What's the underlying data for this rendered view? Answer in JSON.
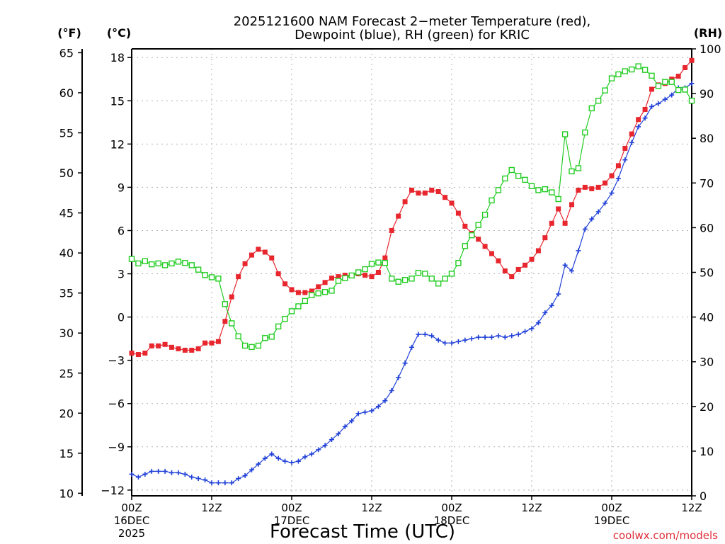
{
  "chart_data": {
    "type": "line",
    "title": [
      "2025121600 NAM Forecast 2−meter Temperature (red),",
      "Dewpoint (blue), RH (green) for KRIC"
    ],
    "xlabel": "Forecast Time (UTC)",
    "credit": "coolwx.com/models",
    "units": {
      "far": "(°F)",
      "cel": "(°C)",
      "rh": "(RH)"
    },
    "ylim_c": [
      -12.4,
      18.6
    ],
    "ylim_rh": [
      0,
      100
    ],
    "y_ticks_c": [
      -12,
      -9,
      -6,
      -3,
      0,
      3,
      6,
      9,
      12,
      15,
      18
    ],
    "y_ticks_f": [
      10,
      15,
      20,
      25,
      30,
      35,
      40,
      45,
      50,
      55,
      60,
      65
    ],
    "y_ticks_rh": [
      0,
      10,
      20,
      30,
      40,
      50,
      60,
      70,
      80,
      90,
      100
    ],
    "xlim_hours": [
      0,
      84
    ],
    "x_ticks": [
      {
        "hour": 0,
        "lines": [
          "00Z",
          "16DEC",
          "2025"
        ]
      },
      {
        "hour": 12,
        "lines": [
          "12Z"
        ]
      },
      {
        "hour": 24,
        "lines": [
          "00Z",
          "17DEC"
        ]
      },
      {
        "hour": 36,
        "lines": [
          "12Z"
        ]
      },
      {
        "hour": 48,
        "lines": [
          "00Z",
          "18DEC"
        ]
      },
      {
        "hour": 60,
        "lines": [
          "12Z"
        ]
      },
      {
        "hour": 72,
        "lines": [
          "00Z",
          "19DEC"
        ]
      },
      {
        "hour": 84,
        "lines": [
          "12Z"
        ]
      }
    ],
    "series": [
      {
        "name": "Temperature",
        "axis": "cel",
        "color": "#e8262e",
        "marker": "filled-square",
        "points": [
          [
            0,
            -2.5
          ],
          [
            1,
            -2.6
          ],
          [
            2,
            -2.5
          ],
          [
            3,
            -2.0
          ],
          [
            4,
            -2.0
          ],
          [
            5,
            -1.9
          ],
          [
            6,
            -2.1
          ],
          [
            7,
            -2.2
          ],
          [
            8,
            -2.3
          ],
          [
            9,
            -2.3
          ],
          [
            10,
            -2.2
          ],
          [
            11,
            -1.8
          ],
          [
            12,
            -1.8
          ],
          [
            13,
            -1.7
          ],
          [
            14,
            -0.3
          ],
          [
            15,
            1.4
          ],
          [
            16,
            2.8
          ],
          [
            17,
            3.7
          ],
          [
            18,
            4.3
          ],
          [
            19,
            4.7
          ],
          [
            20,
            4.5
          ],
          [
            21,
            4.1
          ],
          [
            22,
            3.0
          ],
          [
            23,
            2.3
          ],
          [
            24,
            1.9
          ],
          [
            25,
            1.7
          ],
          [
            26,
            1.7
          ],
          [
            27,
            1.8
          ],
          [
            28,
            2.1
          ],
          [
            29,
            2.4
          ],
          [
            30,
            2.7
          ],
          [
            31,
            2.8
          ],
          [
            32,
            2.9
          ],
          [
            33,
            2.9
          ],
          [
            34,
            3.0
          ],
          [
            35,
            2.9
          ],
          [
            36,
            2.8
          ],
          [
            37,
            3.1
          ],
          [
            38,
            4.1
          ],
          [
            39,
            6.0
          ],
          [
            40,
            7.0
          ],
          [
            41,
            8.0
          ],
          [
            42,
            8.8
          ],
          [
            43,
            8.6
          ],
          [
            44,
            8.6
          ],
          [
            45,
            8.8
          ],
          [
            46,
            8.7
          ],
          [
            47,
            8.3
          ],
          [
            48,
            7.9
          ],
          [
            49,
            7.2
          ],
          [
            50,
            6.3
          ],
          [
            51,
            5.8
          ],
          [
            52,
            5.4
          ],
          [
            53,
            4.9
          ],
          [
            54,
            4.4
          ],
          [
            55,
            3.9
          ],
          [
            56,
            3.2
          ],
          [
            57,
            2.8
          ],
          [
            58,
            3.3
          ],
          [
            59,
            3.6
          ],
          [
            60,
            4.0
          ],
          [
            61,
            4.6
          ],
          [
            62,
            5.5
          ],
          [
            63,
            6.5
          ],
          [
            64,
            7.5
          ],
          [
            65,
            6.5
          ],
          [
            66,
            7.8
          ],
          [
            67,
            8.8
          ],
          [
            68,
            9.0
          ],
          [
            69,
            8.9
          ],
          [
            70,
            9.0
          ],
          [
            71,
            9.3
          ],
          [
            72,
            9.8
          ],
          [
            73,
            10.5
          ],
          [
            74,
            11.7
          ],
          [
            75,
            12.7
          ],
          [
            76,
            13.7
          ],
          [
            77,
            14.4
          ],
          [
            78,
            15.8
          ],
          [
            79,
            16.1
          ],
          [
            80,
            16.2
          ],
          [
            81,
            16.5
          ],
          [
            82,
            16.7
          ],
          [
            83,
            17.3
          ],
          [
            84,
            17.8
          ]
        ]
      },
      {
        "name": "Dewpoint",
        "axis": "cel",
        "color": "#2040d8",
        "marker": "plus",
        "points": [
          [
            0,
            -10.9
          ],
          [
            1,
            -11.1
          ],
          [
            2,
            -10.9
          ],
          [
            3,
            -10.7
          ],
          [
            4,
            -10.7
          ],
          [
            5,
            -10.7
          ],
          [
            6,
            -10.8
          ],
          [
            7,
            -10.8
          ],
          [
            8,
            -10.9
          ],
          [
            9,
            -11.1
          ],
          [
            10,
            -11.2
          ],
          [
            11,
            -11.3
          ],
          [
            12,
            -11.5
          ],
          [
            13,
            -11.5
          ],
          [
            14,
            -11.5
          ],
          [
            15,
            -11.5
          ],
          [
            16,
            -11.2
          ],
          [
            17,
            -11.0
          ],
          [
            18,
            -10.6
          ],
          [
            19,
            -10.2
          ],
          [
            20,
            -9.8
          ],
          [
            21,
            -9.5
          ],
          [
            22,
            -9.8
          ],
          [
            23,
            -10.0
          ],
          [
            24,
            -10.1
          ],
          [
            25,
            -10.0
          ],
          [
            26,
            -9.7
          ],
          [
            27,
            -9.5
          ],
          [
            28,
            -9.2
          ],
          [
            29,
            -8.9
          ],
          [
            30,
            -8.5
          ],
          [
            31,
            -8.1
          ],
          [
            32,
            -7.6
          ],
          [
            33,
            -7.2
          ],
          [
            34,
            -6.7
          ],
          [
            35,
            -6.6
          ],
          [
            36,
            -6.5
          ],
          [
            37,
            -6.2
          ],
          [
            38,
            -5.8
          ],
          [
            39,
            -5.1
          ],
          [
            40,
            -4.2
          ],
          [
            41,
            -3.2
          ],
          [
            42,
            -2.1
          ],
          [
            43,
            -1.2
          ],
          [
            44,
            -1.2
          ],
          [
            45,
            -1.3
          ],
          [
            46,
            -1.6
          ],
          [
            47,
            -1.8
          ],
          [
            48,
            -1.8
          ],
          [
            49,
            -1.7
          ],
          [
            50,
            -1.6
          ],
          [
            51,
            -1.5
          ],
          [
            52,
            -1.4
          ],
          [
            53,
            -1.4
          ],
          [
            54,
            -1.4
          ],
          [
            55,
            -1.3
          ],
          [
            56,
            -1.4
          ],
          [
            57,
            -1.3
          ],
          [
            58,
            -1.2
          ],
          [
            59,
            -1.0
          ],
          [
            60,
            -0.8
          ],
          [
            61,
            -0.4
          ],
          [
            62,
            0.3
          ],
          [
            63,
            0.8
          ],
          [
            64,
            1.6
          ],
          [
            65,
            3.6
          ],
          [
            66,
            3.2
          ],
          [
            67,
            4.6
          ],
          [
            68,
            6.1
          ],
          [
            69,
            6.8
          ],
          [
            70,
            7.3
          ],
          [
            71,
            7.9
          ],
          [
            72,
            8.6
          ],
          [
            73,
            9.6
          ],
          [
            74,
            10.9
          ],
          [
            75,
            12.1
          ],
          [
            76,
            13.2
          ],
          [
            77,
            13.8
          ],
          [
            78,
            14.6
          ],
          [
            79,
            14.8
          ],
          [
            80,
            15.1
          ],
          [
            81,
            15.4
          ],
          [
            82,
            15.9
          ],
          [
            83,
            15.9
          ],
          [
            84,
            16.2
          ]
        ]
      },
      {
        "name": "RH",
        "axis": "rh",
        "color": "#22cc22",
        "marker": "open-square",
        "points": [
          [
            0,
            53
          ],
          [
            1,
            52
          ],
          [
            2,
            52.5
          ],
          [
            3,
            51.8
          ],
          [
            4,
            52
          ],
          [
            5,
            51.6
          ],
          [
            6,
            52
          ],
          [
            7,
            52.4
          ],
          [
            8,
            52.1
          ],
          [
            9,
            51.6
          ],
          [
            10,
            50.6
          ],
          [
            11,
            49.4
          ],
          [
            12,
            48.9
          ],
          [
            13,
            48.6
          ],
          [
            14,
            42.9
          ],
          [
            15,
            38.6
          ],
          [
            16,
            35.7
          ],
          [
            17,
            33.6
          ],
          [
            18,
            33.3
          ],
          [
            19,
            33.6
          ],
          [
            20,
            35.3
          ],
          [
            21,
            35.6
          ],
          [
            22,
            37.9
          ],
          [
            23,
            39.6
          ],
          [
            24,
            41.3
          ],
          [
            25,
            42.4
          ],
          [
            26,
            43.6
          ],
          [
            27,
            44.9
          ],
          [
            28,
            45.3
          ],
          [
            29,
            45.6
          ],
          [
            30,
            45.9
          ],
          [
            31,
            48.1
          ],
          [
            32,
            48.7
          ],
          [
            33,
            49.3
          ],
          [
            34,
            50
          ],
          [
            35,
            50.7
          ],
          [
            36,
            51.9
          ],
          [
            37,
            52.2
          ],
          [
            38,
            52.1
          ],
          [
            39,
            48.6
          ],
          [
            40,
            47.9
          ],
          [
            41,
            48.3
          ],
          [
            42,
            48.6
          ],
          [
            43,
            49.9
          ],
          [
            44,
            49.7
          ],
          [
            45,
            48.6
          ],
          [
            46,
            47.5
          ],
          [
            47,
            48.6
          ],
          [
            48,
            49.7
          ],
          [
            49,
            52.1
          ],
          [
            50,
            55.9
          ],
          [
            51,
            58.3
          ],
          [
            52,
            60.6
          ],
          [
            53,
            62.9
          ],
          [
            54,
            66.1
          ],
          [
            55,
            68.4
          ],
          [
            56,
            71
          ],
          [
            57,
            72.9
          ],
          [
            58,
            71.6
          ],
          [
            59,
            70.7
          ],
          [
            60,
            69.3
          ],
          [
            61,
            68.4
          ],
          [
            62,
            68.6
          ],
          [
            63,
            67.9
          ],
          [
            64,
            66.4
          ],
          [
            65,
            80.9
          ],
          [
            66,
            72.6
          ],
          [
            67,
            73.3
          ],
          [
            68,
            81.3
          ],
          [
            69,
            86.7
          ],
          [
            70,
            88.4
          ],
          [
            71,
            90.7
          ],
          [
            72,
            93.4
          ],
          [
            73,
            94.3
          ],
          [
            74,
            95
          ],
          [
            75,
            95.4
          ],
          [
            76,
            96.1
          ],
          [
            77,
            95.3
          ],
          [
            78,
            94
          ],
          [
            79,
            91.7
          ],
          [
            80,
            92.6
          ],
          [
            81,
            92.6
          ],
          [
            82,
            90.8
          ],
          [
            83,
            90.9
          ],
          [
            84,
            88.4
          ]
        ]
      }
    ]
  }
}
